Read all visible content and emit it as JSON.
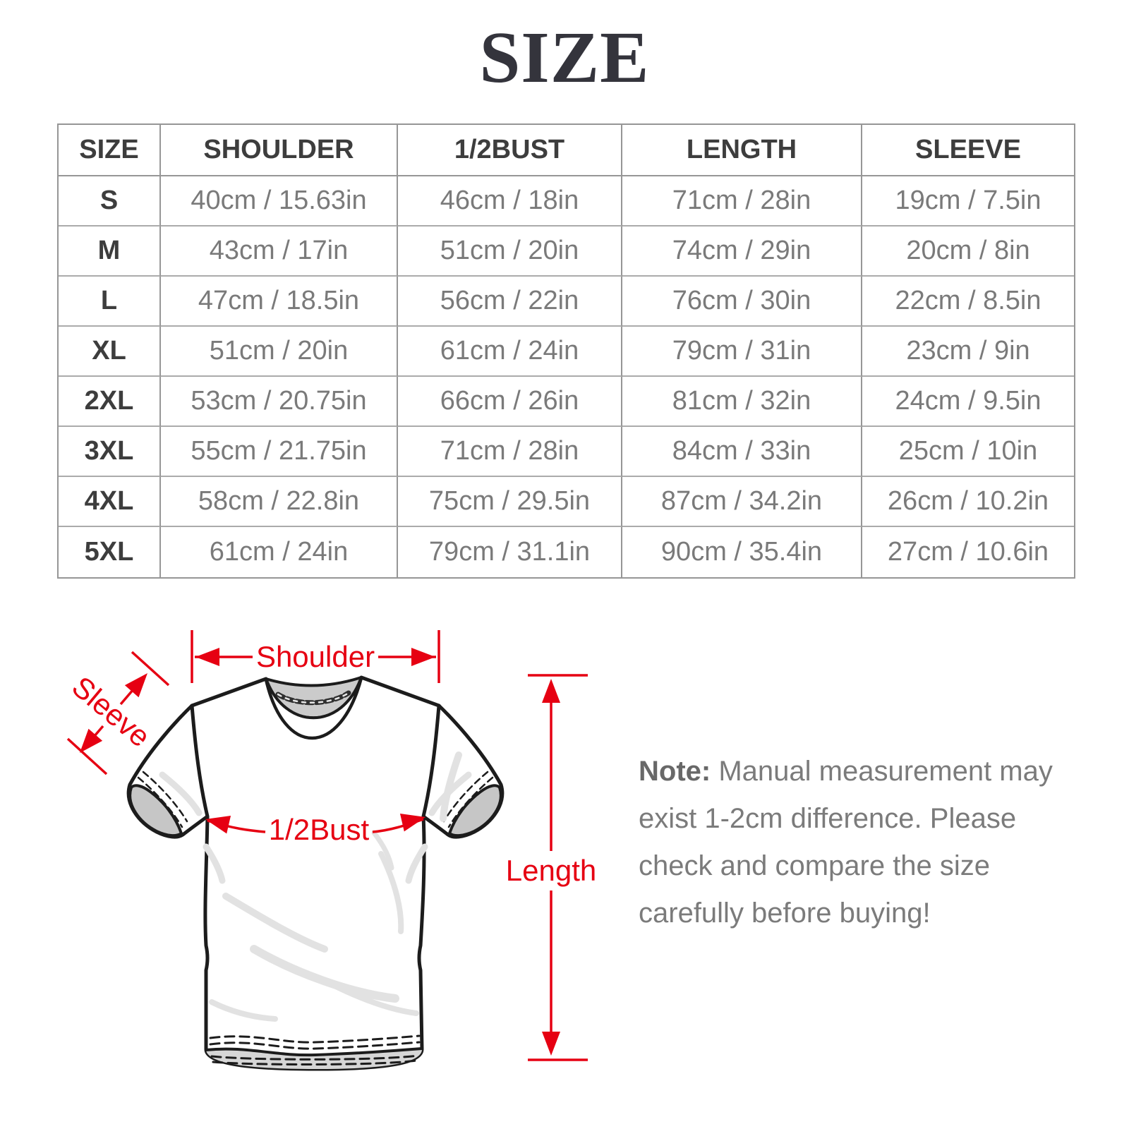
{
  "title": "SIZE",
  "table": {
    "headers": [
      "SIZE",
      "SHOULDER",
      "1/2BUST",
      "LENGTH",
      "SLEEVE"
    ],
    "rows": [
      [
        "S",
        "40cm / 15.63in",
        "46cm / 18in",
        "71cm / 28in",
        "19cm / 7.5in"
      ],
      [
        "M",
        "43cm / 17in",
        "51cm / 20in",
        "74cm / 29in",
        "20cm / 8in"
      ],
      [
        "L",
        "47cm / 18.5in",
        "56cm / 22in",
        "76cm / 30in",
        "22cm / 8.5in"
      ],
      [
        "XL",
        "51cm / 20in",
        "61cm / 24in",
        "79cm / 31in",
        "23cm / 9in"
      ],
      [
        "2XL",
        "53cm / 20.75in",
        "66cm / 26in",
        "81cm / 32in",
        "24cm / 9.5in"
      ],
      [
        "3XL",
        "55cm / 21.75in",
        "71cm / 28in",
        "84cm / 33in",
        "25cm / 10in"
      ],
      [
        "4XL",
        "58cm / 22.8in",
        "75cm / 29.5in",
        "87cm / 34.2in",
        "26cm / 10.2in"
      ],
      [
        "5XL",
        "61cm / 24in",
        "79cm / 31.1in",
        "90cm / 35.4in",
        "27cm / 10.6in"
      ]
    ]
  },
  "diagram": {
    "labels": {
      "shoulder": "Shoulder",
      "sleeve": "Sleeve",
      "half_bust": "1/2Bust",
      "length": "Length"
    },
    "annotation_color": "#e60012",
    "outline_color": "#1c1c1c"
  },
  "note": {
    "bold_prefix": "Note:",
    "line1_rest": " Manual measurement may",
    "line2": "exist 1-2cm difference. Please",
    "line3": "check and compare the size",
    "line4": "carefully before buying!"
  }
}
